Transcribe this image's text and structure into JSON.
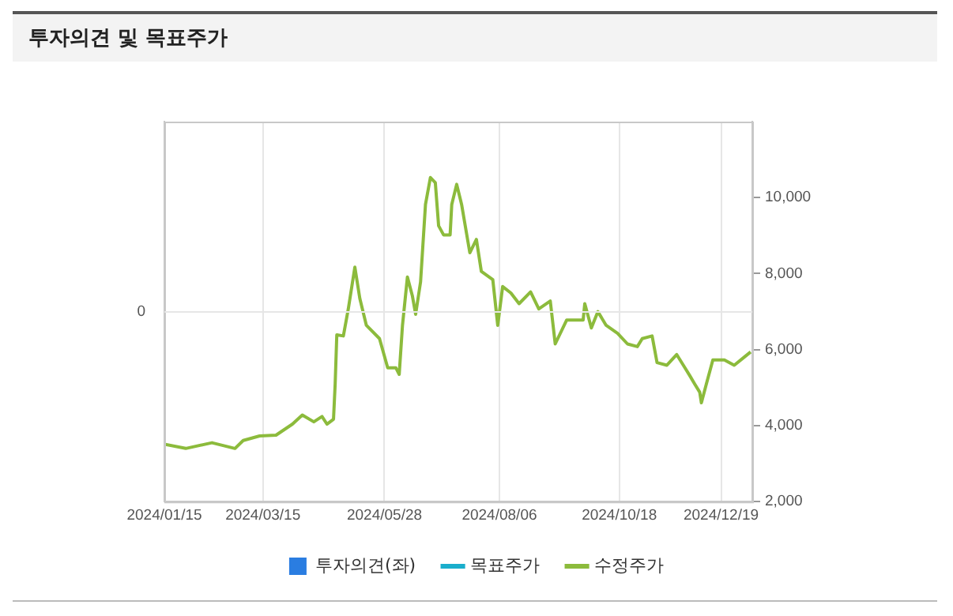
{
  "chart_data": {
    "type": "line",
    "title": "투자의견 및 목표주가",
    "x": [
      "2024-01-15",
      "2024-01-28",
      "2024-02-13",
      "2024-02-27",
      "2024-03-03",
      "2024-03-13",
      "2024-03-23",
      "2024-04-02",
      "2024-04-08",
      "2024-04-15",
      "2024-04-20",
      "2024-04-23",
      "2024-04-27",
      "2024-04-28",
      "2024-04-29",
      "2024-05-03",
      "2024-05-06",
      "2024-05-10",
      "2024-05-13",
      "2024-05-17",
      "2024-05-25",
      "2024-05-30",
      "2024-06-04",
      "2024-06-06",
      "2024-06-08",
      "2024-06-11",
      "2024-06-14",
      "2024-06-16",
      "2024-06-19",
      "2024-06-22",
      "2024-06-25",
      "2024-06-28",
      "2024-06-30",
      "2024-07-03",
      "2024-07-07",
      "2024-07-08",
      "2024-07-11",
      "2024-07-14",
      "2024-07-19",
      "2024-07-23",
      "2024-07-26",
      "2024-08-02",
      "2024-08-05",
      "2024-08-08",
      "2024-08-13",
      "2024-08-18",
      "2024-08-25",
      "2024-08-30",
      "2024-09-06",
      "2024-09-09",
      "2024-09-16",
      "2024-09-26",
      "2024-09-27",
      "2024-10-01",
      "2024-10-05",
      "2024-10-10",
      "2024-10-17",
      "2024-10-23",
      "2024-10-29",
      "2024-11-01",
      "2024-11-07",
      "2024-11-10",
      "2024-11-16",
      "2024-11-22",
      "2024-11-27",
      "2024-11-30",
      "2024-12-03",
      "2024-12-06",
      "2024-12-07",
      "2024-12-10",
      "2024-12-14",
      "2024-12-21",
      "2024-12-27",
      "2025-01-02",
      "2025-01-06"
    ],
    "xlim": [
      "2024-01-15",
      "2025-01-07"
    ],
    "xticks": [
      {
        "value": "2024-01-15",
        "label": "2024/01/15"
      },
      {
        "value": "2024-03-15",
        "label": "2024/03/15"
      },
      {
        "value": "2024-05-28",
        "label": "2024/05/28"
      },
      {
        "value": "2024-08-06",
        "label": "2024/08/06"
      },
      {
        "value": "2024-10-18",
        "label": "2024/10/18"
      },
      {
        "value": "2024-12-19",
        "label": "2024/12/19"
      }
    ],
    "annotations": [
      "0"
    ],
    "y2lim": [
      2000,
      12000
    ],
    "y2ticks": [
      {
        "value": 2000,
        "label": "2,000"
      },
      {
        "value": 4000,
        "label": "4,000"
      },
      {
        "value": 6000,
        "label": "6,000"
      },
      {
        "value": 8000,
        "label": "8,000"
      },
      {
        "value": 10000,
        "label": "10,000"
      }
    ],
    "grid": true,
    "legend": "bottom",
    "marker": "none",
    "series": [
      {
        "name": "투자의견(좌)",
        "type": "bar",
        "axis": "y",
        "color": "#2a7de1",
        "values": [
          null,
          null,
          null,
          null,
          null,
          null,
          null,
          null,
          null,
          null,
          null,
          null,
          null,
          null,
          null,
          null,
          null,
          null,
          null,
          null,
          null,
          null,
          null,
          null,
          null,
          null,
          null,
          null,
          null,
          null,
          null,
          null,
          null,
          null,
          null,
          null,
          null,
          null,
          null,
          null,
          null,
          null,
          null,
          null,
          null,
          null,
          null,
          null,
          null,
          null,
          null,
          null,
          null,
          null,
          null,
          null,
          null,
          null,
          null,
          null,
          null,
          null,
          null,
          null,
          null,
          null,
          null,
          null,
          null,
          null,
          null,
          null,
          null,
          null,
          null
        ]
      },
      {
        "name": "목표주가",
        "type": "line",
        "axis": "y2",
        "color": "#1aaecc",
        "values": [
          null,
          null,
          null,
          null,
          null,
          null,
          null,
          null,
          null,
          null,
          null,
          null,
          null,
          null,
          null,
          null,
          null,
          null,
          null,
          null,
          null,
          null,
          null,
          null,
          null,
          null,
          null,
          null,
          null,
          null,
          null,
          null,
          null,
          null,
          null,
          null,
          null,
          null,
          null,
          null,
          null,
          null,
          null,
          null,
          null,
          null,
          null,
          null,
          null,
          null,
          null,
          null,
          null,
          null,
          null,
          null,
          null,
          null,
          null,
          null,
          null,
          null,
          null,
          null,
          null,
          null,
          null,
          null,
          null,
          null,
          null,
          null,
          null,
          null,
          null
        ]
      },
      {
        "name": "수정주가",
        "axis": "y2",
        "color": "#8cbb3c",
        "values": [
          3510,
          3400,
          3550,
          3400,
          3610,
          3730,
          3750,
          4040,
          4280,
          4100,
          4240,
          4040,
          4170,
          5090,
          6390,
          6360,
          7070,
          8170,
          7350,
          6640,
          6290,
          5520,
          5520,
          5350,
          6640,
          7910,
          7420,
          6930,
          7780,
          9820,
          10530,
          10390,
          9260,
          9020,
          9020,
          9820,
          10350,
          9820,
          8550,
          8900,
          8060,
          7840,
          6640,
          7660,
          7490,
          7210,
          7520,
          7070,
          7280,
          6150,
          6780,
          6780,
          7210,
          6570,
          7000,
          6640,
          6430,
          6150,
          6080,
          6290,
          6360,
          5660,
          5590,
          5870,
          5520,
          5310,
          5090,
          4880,
          4600,
          5090,
          5730,
          5730,
          5590,
          5800,
          5940
        ]
      }
    ]
  }
}
